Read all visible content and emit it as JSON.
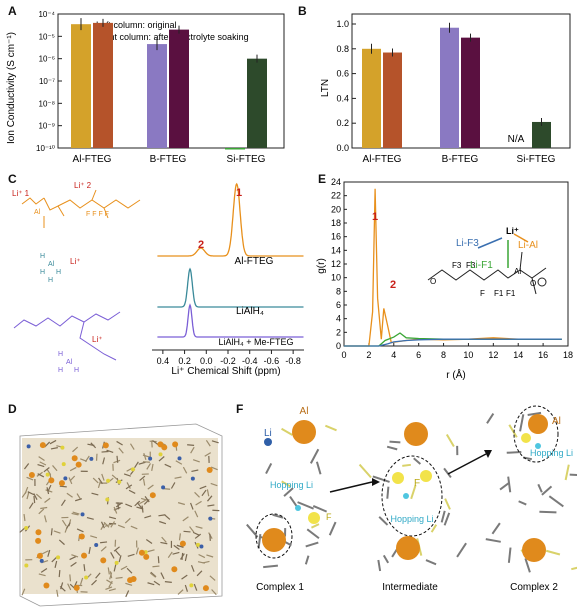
{
  "panels": {
    "A": {
      "letter": "A",
      "ylabel": "Ion Conductivity (S cm⁻¹)",
      "legend_line1": "Left column: original",
      "legend_line2": "Right column: after electrolyte soaking",
      "y_ticks": [
        "10⁻⁴",
        "10⁻⁵",
        "10⁻⁶",
        "10⁻⁷",
        "10⁻⁸",
        "10⁻⁹",
        "10⁻¹⁰"
      ],
      "categories": [
        "Al-FTEG",
        "B-FTEG",
        "Si-FTEG"
      ]
    },
    "B": {
      "letter": "B",
      "ylabel": "LTN",
      "y_ticks": [
        "0.0",
        "0.2",
        "0.4",
        "0.6",
        "0.8",
        "1.0"
      ],
      "categories": [
        "Al-FTEG",
        "B-FTEG",
        "Si-FTEG"
      ],
      "na_label": "N/A"
    },
    "C": {
      "letter": "C",
      "xlabel": "Li⁺ Chemical Shift (ppm)",
      "x_ticks": [
        "0.4",
        "0.2",
        "0.0",
        "-0.2",
        "-0.4",
        "-0.6",
        "-0.8"
      ],
      "trace_labels": [
        "Al-FTEG",
        "LiAlH₄",
        "LiAlH₄ + Me-FTEG"
      ],
      "peak1": "1",
      "peak2": "2",
      "li1": "Li⁺ 1",
      "li2": "Li⁺ 2",
      "li_plus": "Li⁺"
    },
    "D": {
      "letter": "D"
    },
    "E": {
      "letter": "E",
      "ylabel": "g(r)",
      "xlabel": "r (Å)",
      "x_ticks": [
        "0",
        "2",
        "4",
        "6",
        "8",
        "10",
        "12",
        "14",
        "16",
        "18"
      ],
      "y_ticks": [
        "0",
        "2",
        "4",
        "6",
        "8",
        "10",
        "12",
        "14",
        "16",
        "18",
        "20",
        "22",
        "24"
      ],
      "peak1": "1",
      "peak2": "2",
      "lif3": "Li-F3",
      "lif1": "Li-F1",
      "lial": "Li-Al",
      "li_plus": "Li⁺"
    },
    "F": {
      "letter": "F",
      "al": "Al",
      "li": "Li",
      "f": "F",
      "hopping1": "Hopping Li",
      "hopping2": "Hopping Li",
      "hopping3": "Hopping Li",
      "complex1": "Complex 1",
      "intermediate": "Intermediate",
      "complex2": "Complex 2"
    }
  },
  "colors": {
    "gold": "#d4a22a",
    "rust": "#b5532a",
    "lavender": "#8a79c2",
    "plum": "#5a1040",
    "green": "#3aa635",
    "darkgreen": "#2d4a2b",
    "orange": "#e8901c",
    "blue": "#3a6fb0",
    "teal": "#3a8a9a",
    "purple": "#7b5fd6"
  },
  "chart_data": [
    {
      "type": "bar",
      "panel": "A",
      "ylabel": "Ion Conductivity (S cm⁻¹)",
      "yscale": "log",
      "ylim": [
        1e-10,
        0.0001
      ],
      "categories": [
        "Al-FTEG",
        "B-FTEG",
        "Si-FTEG"
      ],
      "series": [
        {
          "name": "Left column: original",
          "values": [
            3.5e-05,
            4.5e-06,
            1e-10
          ]
        },
        {
          "name": "Right column: after electrolyte soaking",
          "values": [
            4e-05,
            2e-05,
            1e-06
          ]
        }
      ]
    },
    {
      "type": "bar",
      "panel": "B",
      "ylabel": "LTN",
      "ylim": [
        0,
        1.0
      ],
      "categories": [
        "Al-FTEG",
        "B-FTEG",
        "Si-FTEG"
      ],
      "series": [
        {
          "values": [
            0.8,
            0.97,
            null
          ]
        },
        {
          "values": [
            0.77,
            0.89,
            0.21
          ]
        }
      ]
    },
    {
      "type": "line",
      "panel": "E",
      "xlabel": "r (Å)",
      "ylabel": "g(r)",
      "xlim": [
        0,
        18
      ],
      "ylim": [
        0,
        24
      ],
      "series": [
        {
          "name": "Li-Al",
          "x": [
            0,
            2,
            2.3,
            2.5,
            2.7,
            3.0,
            3.2,
            3.5,
            3.8,
            4.2,
            5,
            6,
            8,
            10,
            12,
            14,
            17.5
          ],
          "y": [
            0,
            0,
            5,
            23,
            7,
            1,
            5.5,
            3,
            0.5,
            0.6,
            0.8,
            1.0,
            0.9,
            1.0,
            1.2,
            1.0,
            1.0
          ]
        },
        {
          "name": "Li-F1",
          "x": [
            0,
            2.8,
            3.3,
            4,
            4.5,
            5,
            6,
            8,
            10,
            12,
            17.5
          ],
          "y": [
            0,
            0,
            0.8,
            1.3,
            1.9,
            1.2,
            1.1,
            1.0,
            1.0,
            1.0,
            1.0
          ]
        },
        {
          "name": "Li-F3",
          "x": [
            0,
            2.8,
            3.5,
            4,
            5,
            6,
            8,
            12,
            17.5
          ],
          "y": [
            0,
            0,
            0.3,
            0.6,
            0.8,
            0.9,
            1.0,
            1.0,
            1.0
          ]
        }
      ]
    }
  ]
}
